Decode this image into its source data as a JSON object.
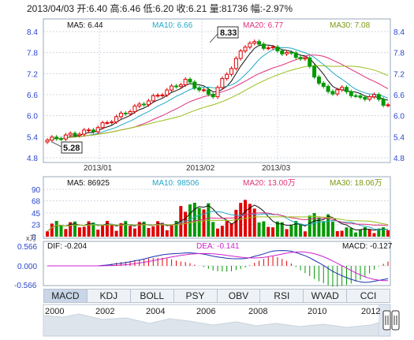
{
  "header": {
    "date": "2013/04/03",
    "open": "开:6.40",
    "high": "高:6.46",
    "low": "低:6.20",
    "close": "收:6.21",
    "volume": "量:81736",
    "change": "幅:-2.97%"
  },
  "price_panel": {
    "ma5": "MA5: 6.44",
    "ma10": "MA10: 6.66",
    "ma20": "MA20: 6.77",
    "ma30": "MA30: 7.08",
    "y_ticks": [
      "8.4",
      "7.8",
      "7.2",
      "6.6",
      "6.0",
      "5.4",
      "4.8"
    ],
    "x_ticks": [
      "2013/01",
      "2013/02",
      "2013/03"
    ],
    "high_label": "8.33",
    "low_label": "5.28"
  },
  "volume_panel": {
    "ma5": "MA5: 86925",
    "ma10": "MA10: 98506",
    "ma20": "MA20: 13.00万",
    "ma30": "MA30: 18.06万",
    "y_ticks": [
      "90",
      "68",
      "45",
      "23",
      "0"
    ],
    "unit": "x万"
  },
  "macd_panel": {
    "dif": "DIF: -0.204",
    "dea": "DEA: -0.141",
    "macd": "MACD: -0.127",
    "y_ticks": [
      "0.566",
      "0.000",
      "-0.566"
    ]
  },
  "tabs": [
    "MACD",
    "KDJ",
    "BOLL",
    "PSY",
    "OBV",
    "RSI",
    "WVAD",
    "CCI"
  ],
  "timeline_years": [
    "2000",
    "2002",
    "2004",
    "2006",
    "2008",
    "2010",
    "2012"
  ],
  "colors": {
    "up": "#e00000",
    "down": "#009900",
    "ma5": "#111111",
    "ma10": "#23a8c8",
    "ma20": "#e0307a",
    "ma30": "#9abf18",
    "grid": "#cfd8e3"
  }
}
